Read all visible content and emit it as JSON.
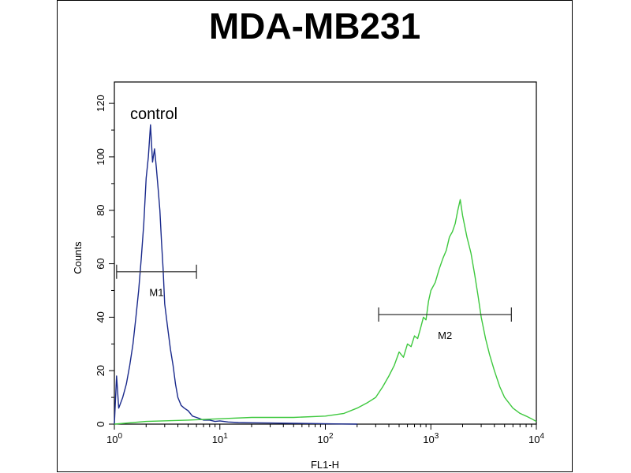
{
  "chart_data": {
    "type": "line",
    "title": "MDA-MB231",
    "xlabel": "FL1-H",
    "ylabel": "Counts",
    "xscale": "log",
    "xlim": [
      1,
      10000
    ],
    "ylim": [
      0,
      128
    ],
    "y_ticks": [
      0,
      20,
      40,
      60,
      80,
      100,
      120
    ],
    "x_ticks": [
      {
        "base": "10",
        "exp": "0"
      },
      {
        "base": "10",
        "exp": "1"
      },
      {
        "base": "10",
        "exp": "2"
      },
      {
        "base": "10",
        "exp": "3"
      },
      {
        "base": "10",
        "exp": "4"
      }
    ],
    "annotation": "control",
    "series": [
      {
        "color": "#1a2a8c",
        "x": [
          1.0,
          1.05,
          1.1,
          1.2,
          1.3,
          1.4,
          1.5,
          1.6,
          1.7,
          1.8,
          1.9,
          2.0,
          2.1,
          2.2,
          2.3,
          2.4,
          2.5,
          2.6,
          2.7,
          2.8,
          2.9,
          3.0,
          3.2,
          3.4,
          3.6,
          3.8,
          4.0,
          4.3,
          4.6,
          5.0,
          5.5,
          6.0,
          6.5,
          7.0,
          8.0,
          9.0,
          10.0,
          12.0,
          15.0,
          20.0,
          30.0,
          50.0,
          80.0,
          120.0,
          200.0
        ],
        "y": [
          0,
          18,
          6,
          10,
          15,
          22,
          30,
          40,
          50,
          62,
          75,
          92,
          100,
          112,
          98,
          103,
          96,
          88,
          80,
          68,
          58,
          45,
          36,
          28,
          22,
          15,
          10,
          7,
          6,
          5,
          3,
          2.5,
          2,
          1.5,
          1.5,
          1,
          1.2,
          0.8,
          0.6,
          0.5,
          0.4,
          0.3,
          0.2,
          0.1,
          0
        ]
      },
      {
        "color": "#3ec83e",
        "x": [
          1.0,
          2.0,
          5.0,
          10.0,
          20.0,
          50.0,
          100.0,
          150.0,
          200.0,
          250.0,
          300.0,
          350.0,
          400.0,
          450.0,
          500.0,
          550.0,
          600.0,
          650.0,
          700.0,
          750.0,
          800.0,
          850.0,
          900.0,
          950.0,
          1000.0,
          1100.0,
          1200.0,
          1300.0,
          1400.0,
          1500.0,
          1600.0,
          1700.0,
          1800.0,
          1900.0,
          2000.0,
          2200.0,
          2400.0,
          2600.0,
          2800.0,
          3000.0,
          3300.0,
          3600.0,
          4000.0,
          4500.0,
          5000.0,
          6000.0,
          7000.0,
          8000.0,
          9000.0,
          10000.0
        ],
        "y": [
          0,
          1,
          1.5,
          2,
          2.5,
          2.5,
          3,
          4,
          6,
          8,
          10,
          14,
          18,
          22,
          27,
          25,
          30,
          29,
          33,
          32,
          36,
          40,
          39,
          46,
          50,
          53,
          58,
          62,
          65,
          70,
          72,
          75,
          80,
          84,
          78,
          70,
          64,
          56,
          48,
          40,
          32,
          26,
          20,
          14,
          10,
          6,
          4,
          3,
          2,
          1
        ]
      }
    ],
    "markers": [
      {
        "label": "M1",
        "x_start": 1.05,
        "x_end": 6.0,
        "y": 57
      },
      {
        "label": "M2",
        "x_start": 320,
        "x_end": 5800,
        "y": 41
      }
    ]
  }
}
